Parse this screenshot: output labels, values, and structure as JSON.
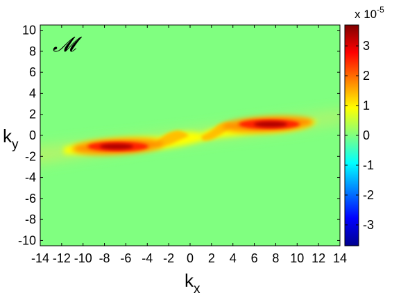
{
  "chart_data": {
    "type": "heatmap",
    "panel_label": "𝓜",
    "xlabel": {
      "base": "k",
      "sub": "x"
    },
    "ylabel": {
      "base": "k",
      "sub": "y"
    },
    "xlim": [
      -14,
      14
    ],
    "ylim": [
      -10.5,
      10.5
    ],
    "x_ticks": [
      -14,
      -12,
      -10,
      -8,
      -6,
      -4,
      -2,
      0,
      2,
      4,
      6,
      8,
      10,
      12,
      14
    ],
    "x_tick_labels": [
      "-14",
      "-12",
      "-10",
      "-8",
      "-6",
      "-4",
      "-2",
      "0",
      "2",
      "4",
      "6",
      "8",
      "10",
      "12",
      "14"
    ],
    "y_ticks": [
      10,
      8,
      6,
      4,
      2,
      0,
      -2,
      -4,
      -6,
      -8,
      -10
    ],
    "y_tick_labels": [
      "10",
      "8",
      "6",
      "4",
      "2",
      "0",
      "-2",
      "-4",
      "-6",
      "-8",
      "-10"
    ],
    "colorbar": {
      "range": [
        -3.7e-05,
        3.7e-05
      ],
      "ticks": [
        3,
        2,
        1,
        0,
        -1,
        -2,
        -3
      ],
      "tick_labels": [
        "3",
        "2",
        "1",
        "0",
        "-1",
        "-2",
        "-3"
      ],
      "multiplier_base": "x 10",
      "multiplier_exp": "-5",
      "colormap": "jet"
    },
    "features": [
      {
        "description": "peak",
        "x": 7.2,
        "y": 0.9,
        "value": 3.6e-05
      },
      {
        "description": "peak",
        "x": -6.8,
        "y": -1.1,
        "value": 3.6e-05
      },
      {
        "description": "ridge",
        "x": 4.5,
        "y": 0.6,
        "value": 1.5e-05
      },
      {
        "description": "ridge",
        "x": -4.5,
        "y": -0.9,
        "value": 1.5e-05
      },
      {
        "description": "ridge",
        "x": -1.5,
        "y": 0.2,
        "value": 1e-05
      },
      {
        "description": "ridge",
        "x": 1.5,
        "y": -0.3,
        "value": 1e-05
      }
    ]
  }
}
